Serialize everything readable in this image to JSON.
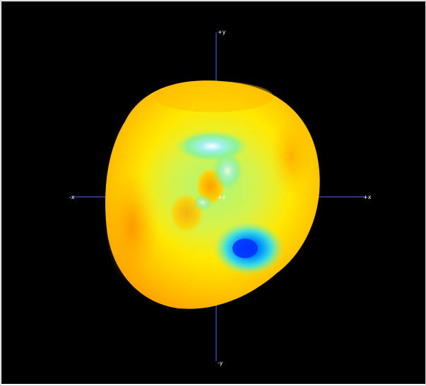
{
  "viewer": {
    "background": "#000000",
    "axis_color": "#5c5cff",
    "axes": {
      "pos_y": "+y",
      "neg_y": "-y",
      "pos_x": "+x",
      "neg_x": "-x",
      "pos_z": "+z"
    },
    "colormap": [
      "#ff9a00",
      "#ffb400",
      "#ffe600",
      "#9ff54f",
      "#6ef7b0",
      "#00b8ff",
      "#0044ff"
    ]
  }
}
